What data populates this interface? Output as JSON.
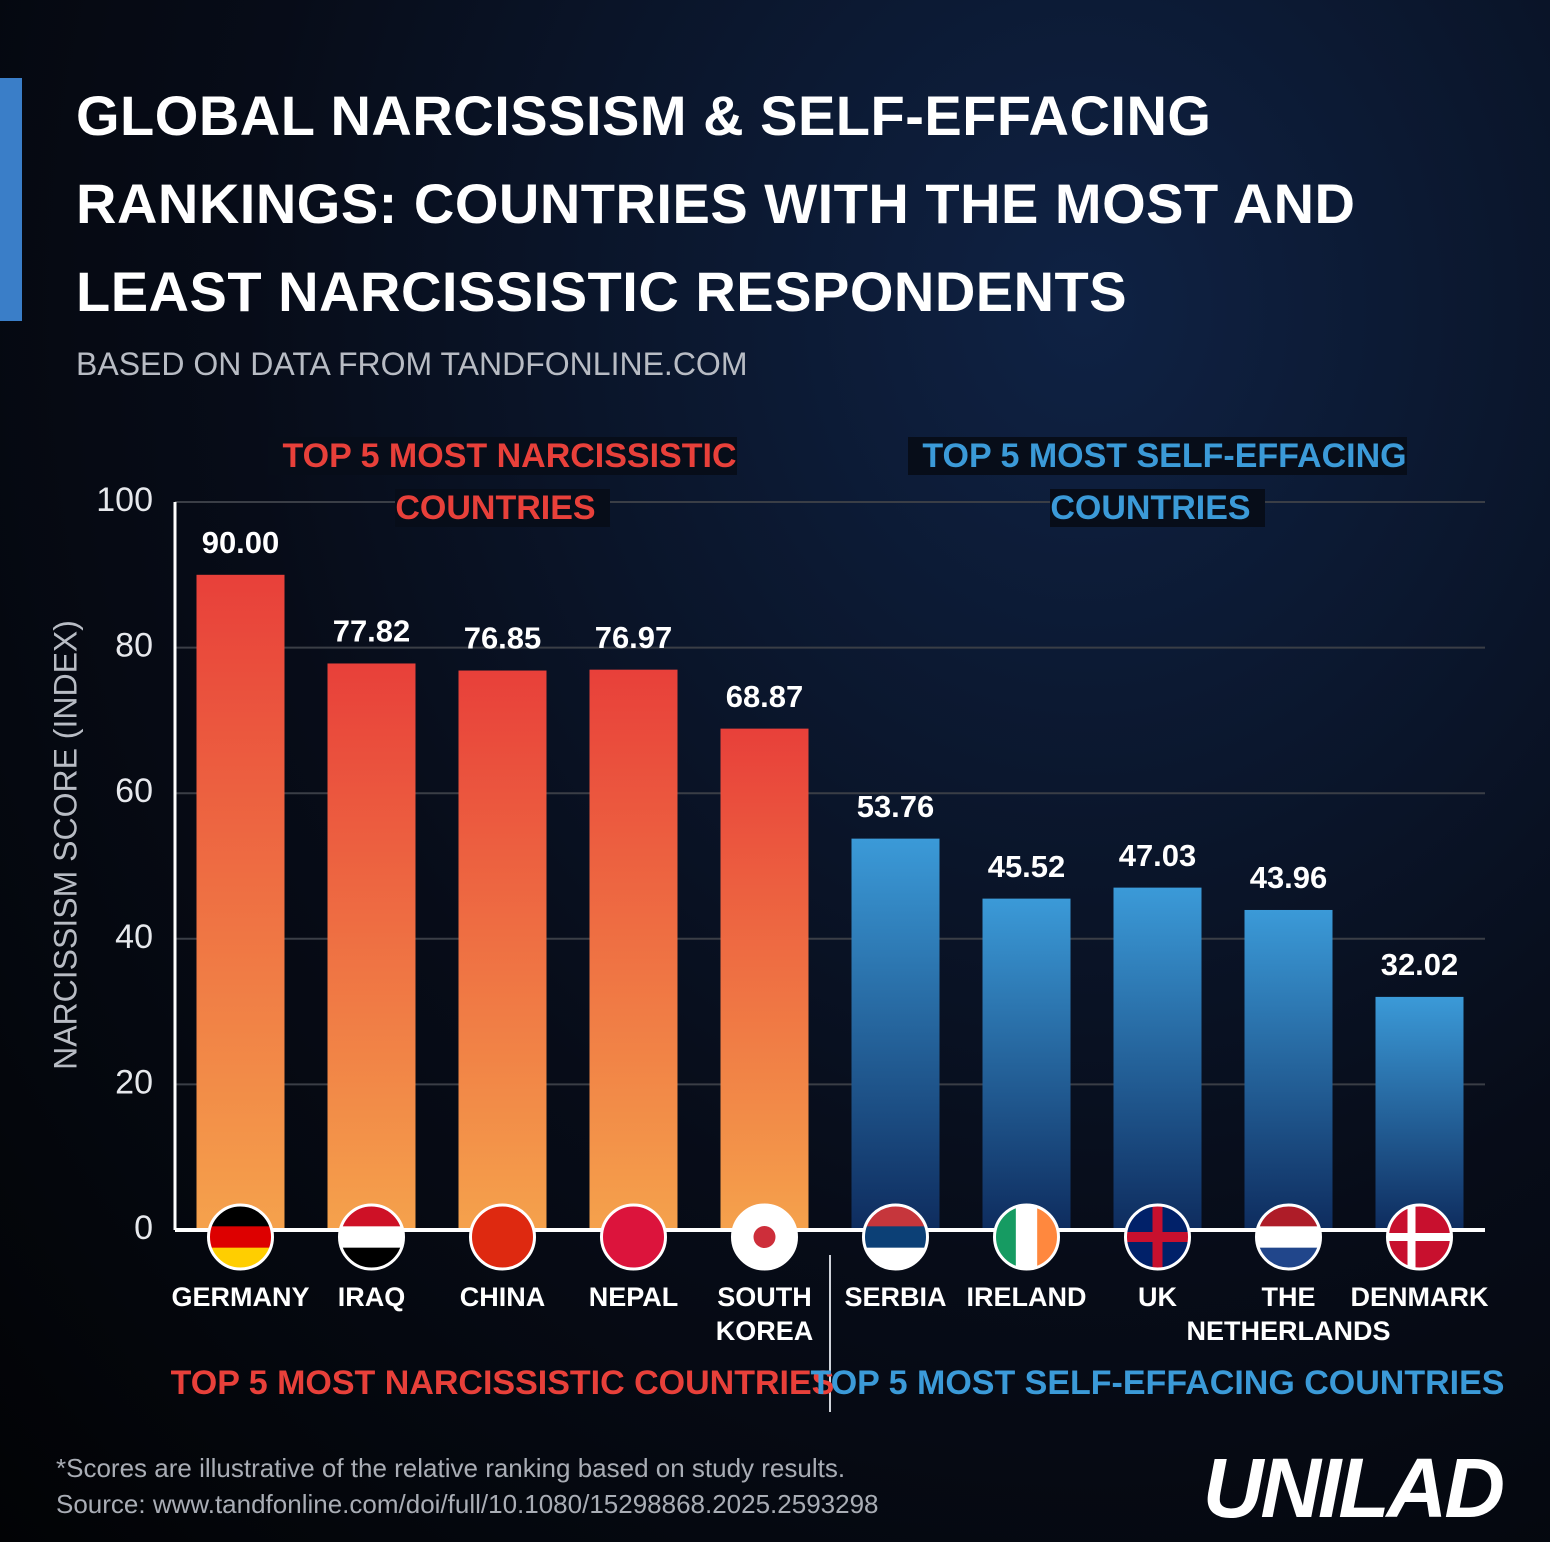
{
  "chart_data": {
    "type": "bar",
    "title": "GLOBAL NARCISSISM & SELF-EFFACING RANKINGS: COUNTRIES WITH THE MOST AND LEAST NARCISSISTIC RESPONDENTS",
    "subtitle": "BASED ON DATA FROM TANDFONLINE.COM",
    "y_label": "NARCISSISM SCORE (INDEX)",
    "categories": [
      "GERMANY",
      "IRAQ",
      "CHINA",
      "NEPAL",
      "SOUTH KOREA",
      "SERBIA",
      "IRELAND",
      "UK",
      "THE NETHERLANDS",
      "DENMARK"
    ],
    "series": [
      {
        "name": "TOP 5 MOST NARCISSISTIC COUNTRIES",
        "color": "#e8403a",
        "color_end": "#f5a24c",
        "values": [
          90,
          77.82,
          76.85,
          76.97,
          68.87,
          null,
          null,
          null,
          null,
          null
        ],
        "value_labels": [
          "90.00",
          "77.82",
          "76.85",
          "76.97",
          "68.87",
          null,
          null,
          null,
          null,
          null
        ]
      },
      {
        "name": "TOP 5 MOST SELF-EFFACING COUNTRIES",
        "color": "#3b9ad8",
        "color_end": "#0e2c5e",
        "values": [
          null,
          null,
          null,
          null,
          null,
          53.76,
          45.52,
          47.03,
          43.96,
          32.02
        ],
        "value_labels": [
          null,
          null,
          null,
          null,
          null,
          "53.76",
          "45.52",
          "47.03",
          "43.96",
          "32.02"
        ]
      }
    ],
    "ylim": [
      0,
      100
    ],
    "yticks": [
      0,
      20,
      40,
      60,
      80,
      100
    ],
    "grid": true,
    "note": "*Scores are illustrative of the relative ranking based on study results.",
    "source": "Source: www.tandfonline.com/doi/full/10.1080/15298868.2025.2593298",
    "brand": "UNILAD"
  }
}
